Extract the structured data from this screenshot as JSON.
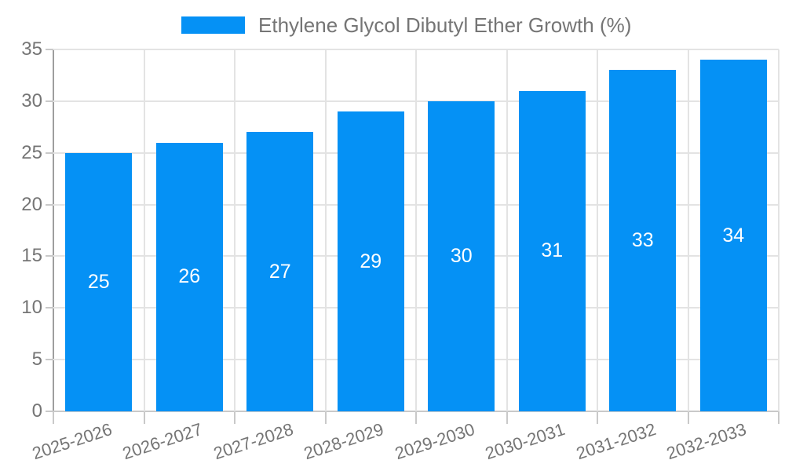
{
  "chart_data": {
    "type": "bar",
    "title": "Ethylene Glycol Dibutyl Ether Growth (%)",
    "legend": {
      "position": "top",
      "label": "Ethylene Glycol Dibutyl Ether Growth (%)"
    },
    "categories": [
      "2025-2026",
      "2026-2027",
      "2027-2028",
      "2028-2029",
      "2029-2030",
      "2030-2031",
      "2031-2032",
      "2032-2033"
    ],
    "values": [
      25,
      26,
      27,
      29,
      30,
      31,
      33,
      34
    ],
    "value_labels": [
      "25",
      "26",
      "27",
      "29",
      "30",
      "31",
      "33",
      "34"
    ],
    "xlabel": "",
    "ylabel": "",
    "ylim": [
      0,
      35
    ],
    "yticks": [
      0,
      5,
      10,
      15,
      20,
      25,
      30,
      35
    ],
    "grid": true,
    "x_label_rotation_deg": -18,
    "colors": {
      "bar": "#0591F5",
      "value_label": "#FFFFFF",
      "axis_text": "#757575",
      "gridline": "#E3E3E3",
      "y_axis_line": "#9E9E9E",
      "x_axis_line": "#C9C9C9",
      "tick": "#C9C9C9",
      "background": "#FFFFFF"
    }
  }
}
